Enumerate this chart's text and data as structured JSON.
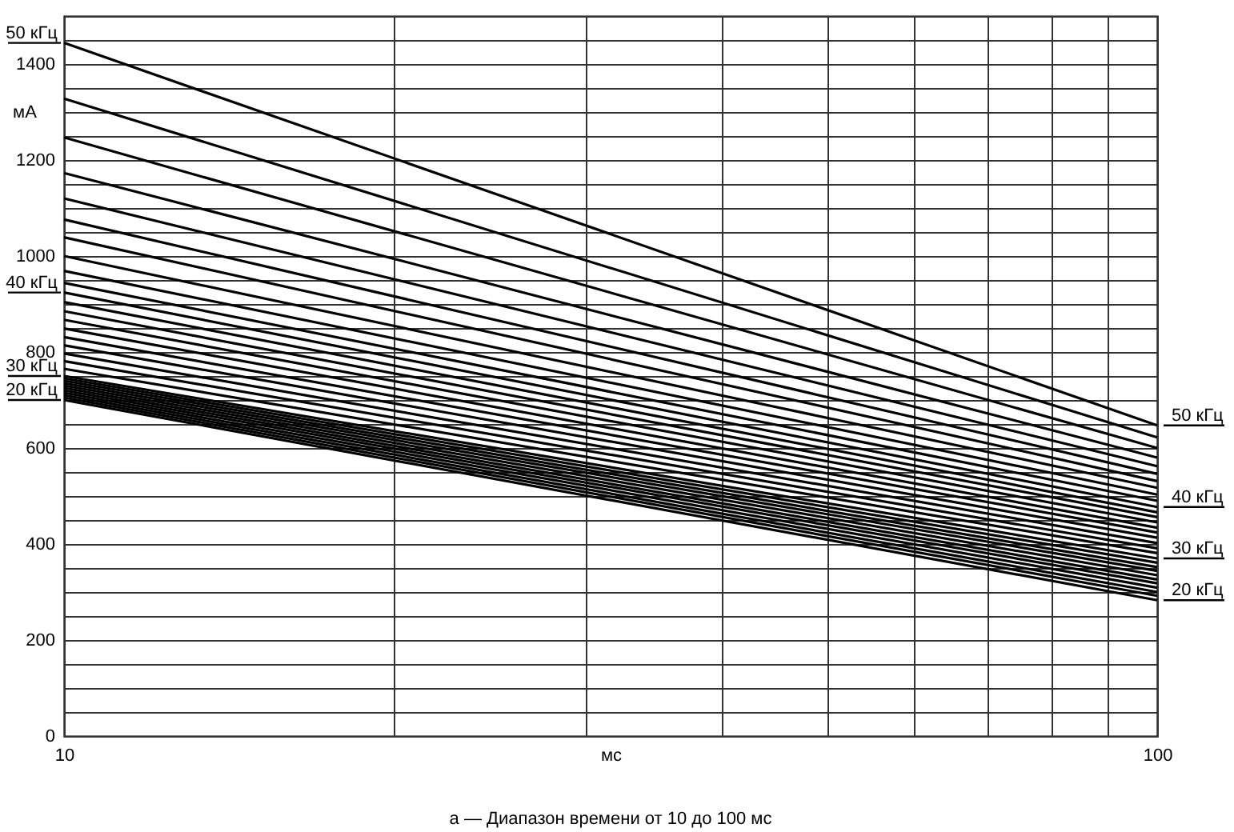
{
  "chart_data": {
    "type": "line",
    "xlabel": "мс",
    "ylabel": "мА",
    "annotations": [
      "а — Диапазон времени от 10 до 100 мс"
    ],
    "x": [
      10,
      100
    ],
    "xlim": [
      10,
      100
    ],
    "xticks": [
      10,
      {
        "value": 20,
        "label": null
      },
      {
        "value": 30,
        "label": null
      },
      {
        "value": 40,
        "label": null
      },
      {
        "value": 50,
        "label": null
      },
      {
        "value": 60,
        "label": null
      },
      {
        "value": 70,
        "label": null
      },
      {
        "value": 80,
        "label": null
      },
      {
        "value": 90,
        "label": null
      },
      100
    ],
    "ylim": [
      0,
      1500
    ],
    "yticks": [
      0,
      {
        "value": 50,
        "label": null
      },
      {
        "value": 100,
        "label": null
      },
      {
        "value": 150,
        "label": null
      },
      200,
      {
        "value": 250,
        "label": null
      },
      {
        "value": 300,
        "label": null
      },
      {
        "value": 350,
        "label": null
      },
      400,
      {
        "value": 450,
        "label": null
      },
      {
        "value": 500,
        "label": null
      },
      {
        "value": 550,
        "label": null
      },
      600,
      {
        "value": 650,
        "label": null
      },
      {
        "value": 700,
        "label": null
      },
      {
        "value": 750,
        "label": null
      },
      800,
      {
        "value": 850,
        "label": null
      },
      {
        "value": 900,
        "label": null
      },
      {
        "value": 950,
        "label": null
      },
      1000,
      {
        "value": 1050,
        "label": null
      },
      {
        "value": 1100,
        "label": null
      },
      {
        "value": 1150,
        "label": null
      },
      1200,
      {
        "value": 1250,
        "label": null
      },
      {
        "value": 1300,
        "label": null
      },
      {
        "value": 1350,
        "label": null
      },
      1400,
      {
        "value": 1450,
        "label": null
      },
      {
        "value": 1500,
        "label": null
      }
    ],
    "log": "x",
    "grid": true,
    "series": [
      {
        "name": "20 кГц",
        "color": "#000000",
        "values": [
          700,
          283
        ]
      },
      {
        "color": "#000000",
        "values": [
          705,
          292
        ]
      },
      {
        "color": "#000000",
        "values": [
          710,
          300
        ]
      },
      {
        "color": "#000000",
        "values": [
          715,
          309
        ]
      },
      {
        "color": "#000000",
        "values": [
          720,
          318
        ]
      },
      {
        "color": "#000000",
        "values": [
          725,
          326
        ]
      },
      {
        "color": "#000000",
        "values": [
          730,
          335
        ]
      },
      {
        "color": "#000000",
        "values": [
          735,
          344
        ]
      },
      {
        "color": "#000000",
        "values": [
          740,
          352
        ]
      },
      {
        "color": "#000000",
        "values": [
          745,
          361
        ]
      },
      {
        "name": "30 кГц",
        "color": "#000000",
        "values": [
          750,
          370
        ]
      },
      {
        "color": "#000000",
        "values": [
          765,
          381
        ]
      },
      {
        "color": "#000000",
        "values": [
          781,
          391
        ]
      },
      {
        "color": "#000000",
        "values": [
          797,
          402
        ]
      },
      {
        "color": "#000000",
        "values": [
          814,
          413
        ]
      },
      {
        "color": "#000000",
        "values": [
          831,
          424
        ]
      },
      {
        "color": "#000000",
        "values": [
          849,
          434
        ]
      },
      {
        "color": "#000000",
        "values": [
          867,
          445
        ]
      },
      {
        "color": "#000000",
        "values": [
          885,
          456
        ]
      },
      {
        "color": "#000000",
        "values": [
          904,
          466
        ]
      },
      {
        "name": "40 кГц",
        "color": "#000000",
        "values": [
          924,
          477
        ]
      },
      {
        "color": "#000000",
        "values": [
          944,
          490
        ]
      },
      {
        "color": "#000000",
        "values": [
          969,
          503
        ]
      },
      {
        "color": "#000000",
        "values": [
          1000,
          517
        ]
      },
      {
        "color": "#000000",
        "values": [
          1039,
          531
        ]
      },
      {
        "color": "#000000",
        "values": [
          1076,
          546
        ]
      },
      {
        "color": "#000000",
        "values": [
          1120,
          562
        ]
      },
      {
        "color": "#000000",
        "values": [
          1173,
          580
        ]
      },
      {
        "color": "#000000",
        "values": [
          1247,
          600
        ]
      },
      {
        "color": "#000000",
        "values": [
          1328,
          622
        ]
      },
      {
        "name": "50 кГц",
        "color": "#000000",
        "values": [
          1444,
          647
        ]
      }
    ]
  }
}
